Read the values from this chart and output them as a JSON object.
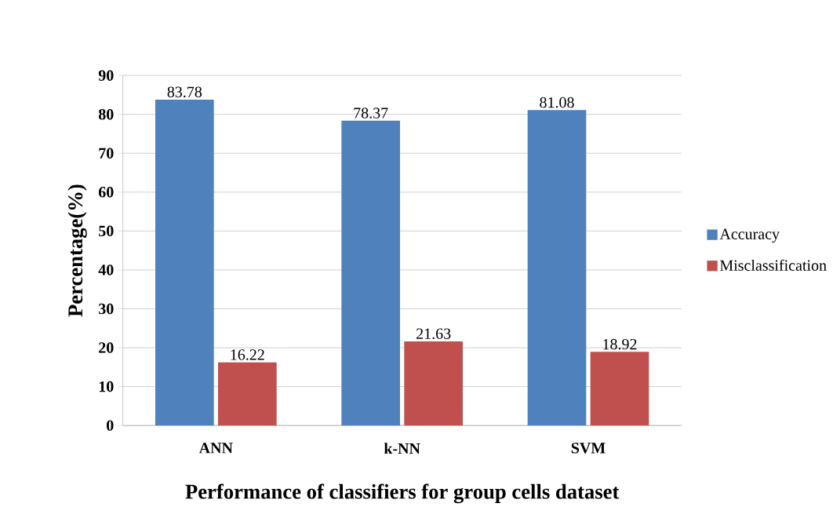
{
  "chart_data": {
    "type": "bar",
    "xlabel": "Performance of classifiers for group cells dataset",
    "ylabel": "Percentage(%)",
    "categories": [
      "ANN",
      "k-NN",
      "SVM"
    ],
    "series": [
      {
        "name": "Accuracy",
        "color": "#4f81bd",
        "values": [
          83.78,
          78.37,
          81.08
        ]
      },
      {
        "name": "Misclassification",
        "color": "#c0504d",
        "values": [
          16.22,
          21.63,
          18.92
        ]
      }
    ],
    "ylim": [
      0,
      90
    ],
    "yticks": [
      0,
      10,
      20,
      30,
      40,
      50,
      60,
      70,
      80,
      90
    ],
    "grid": "y",
    "legend": "right",
    "data_labels": true
  }
}
